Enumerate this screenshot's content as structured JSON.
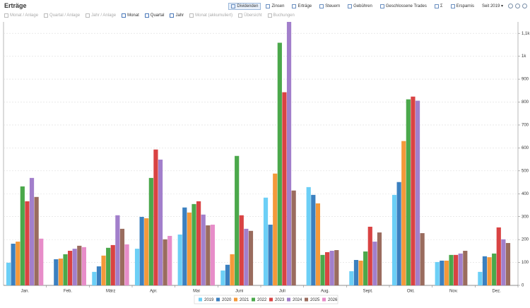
{
  "header": {
    "title": "Erträge"
  },
  "tabs": [
    "Dividenden",
    "Zinsen",
    "Erträge",
    "Steuern",
    "Gebühren",
    "Geschlossene Trades",
    "Σ",
    "Ersparnis"
  ],
  "period": "Seit 2019",
  "views": [
    "Monat / Anlage",
    "Quartal / Anlage",
    "Jahr / Anlage",
    "Monat",
    "Quartal",
    "Jahr",
    "Monat (akkumuliert)",
    "Übersicht",
    "Buchungen"
  ],
  "chart_data": {
    "type": "bar",
    "grid": true,
    "categories": [
      "Jan.",
      "Feb.",
      "März",
      "Apr.",
      "Mai",
      "Juni",
      "Juli",
      "Aug.",
      "Sept.",
      "Okt.",
      "Nov.",
      "Dez."
    ],
    "ylim": [
      0,
      1150
    ],
    "yticks": [
      0,
      100,
      200,
      300,
      400,
      500,
      600,
      700,
      800,
      900,
      {
        "value": 1000,
        "label": "1k"
      },
      {
        "value": 1100,
        "label": "1,1k"
      }
    ],
    "series": [
      {
        "name": "2019",
        "color": "#6ccff6",
        "values": [
          99,
          null,
          59,
          160,
          222,
          65,
          383,
          429,
          62,
          395,
          102,
          59
        ]
      },
      {
        "name": "2020",
        "color": "#3b80c0",
        "values": [
          182,
          114,
          83,
          299,
          340,
          90,
          265,
          395,
          111,
          451,
          108,
          127
        ]
      },
      {
        "name": "2021",
        "color": "#f4993a",
        "values": [
          191,
          117,
          130,
          293,
          318,
          136,
          488,
          358,
          108,
          630,
          108,
          123
        ]
      },
      {
        "name": "2022",
        "color": "#4ba84b",
        "values": [
          432,
          136,
          164,
          469,
          355,
          565,
          1059,
          133,
          148,
          812,
          133,
          139
        ]
      },
      {
        "name": "2023",
        "color": "#d94343",
        "values": [
          367,
          151,
          176,
          593,
          367,
          306,
          843,
          145,
          256,
          824,
          133,
          253
        ]
      },
      {
        "name": "2024",
        "color": "#a27fcb",
        "values": [
          469,
          160,
          306,
          549,
          309,
          247,
          1150,
          151,
          191,
          806,
          139,
          201
        ]
      },
      {
        "name": "2025",
        "color": "#9a6c5e",
        "values": [
          386,
          173,
          247,
          201,
          262,
          238,
          414,
          154,
          231,
          228,
          151,
          185
        ]
      },
      {
        "name": "2026",
        "color": "#e78dc9",
        "values": [
          204,
          167,
          179,
          216,
          265,
          null,
          null,
          null,
          null,
          null,
          null,
          null
        ]
      }
    ]
  }
}
